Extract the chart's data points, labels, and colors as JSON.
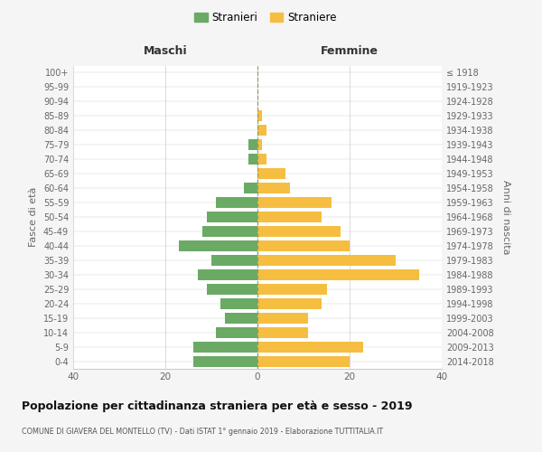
{
  "age_groups": [
    "0-4",
    "5-9",
    "10-14",
    "15-19",
    "20-24",
    "25-29",
    "30-34",
    "35-39",
    "40-44",
    "45-49",
    "50-54",
    "55-59",
    "60-64",
    "65-69",
    "70-74",
    "75-79",
    "80-84",
    "85-89",
    "90-94",
    "95-99",
    "100+"
  ],
  "birth_years": [
    "2014-2018",
    "2009-2013",
    "2004-2008",
    "1999-2003",
    "1994-1998",
    "1989-1993",
    "1984-1988",
    "1979-1983",
    "1974-1978",
    "1969-1973",
    "1964-1968",
    "1959-1963",
    "1954-1958",
    "1949-1953",
    "1944-1948",
    "1939-1943",
    "1934-1938",
    "1929-1933",
    "1924-1928",
    "1919-1923",
    "≤ 1918"
  ],
  "maschi": [
    14,
    14,
    9,
    7,
    8,
    11,
    13,
    10,
    17,
    12,
    11,
    9,
    3,
    0,
    2,
    2,
    0,
    0,
    0,
    0,
    0
  ],
  "femmine": [
    20,
    23,
    11,
    11,
    14,
    15,
    35,
    30,
    20,
    18,
    14,
    16,
    7,
    6,
    2,
    1,
    2,
    1,
    0,
    0,
    0
  ],
  "male_color": "#6aaa64",
  "female_color": "#f5be41",
  "background_color": "#f5f5f5",
  "plot_background": "#ffffff",
  "grid_color": "#cccccc",
  "dashed_color": "#999966",
  "title": "Popolazione per cittadinanza straniera per età e sesso - 2019",
  "subtitle": "COMUNE DI GIAVERA DEL MONTELLO (TV) - Dati ISTAT 1° gennaio 2019 - Elaborazione TUTTITALIA.IT",
  "left_header": "Maschi",
  "right_header": "Femmine",
  "y_left_label": "Fasce di età",
  "y_right_label": "Anni di nascita",
  "legend_male": "Stranieri",
  "legend_female": "Straniere",
  "xlim": 40
}
